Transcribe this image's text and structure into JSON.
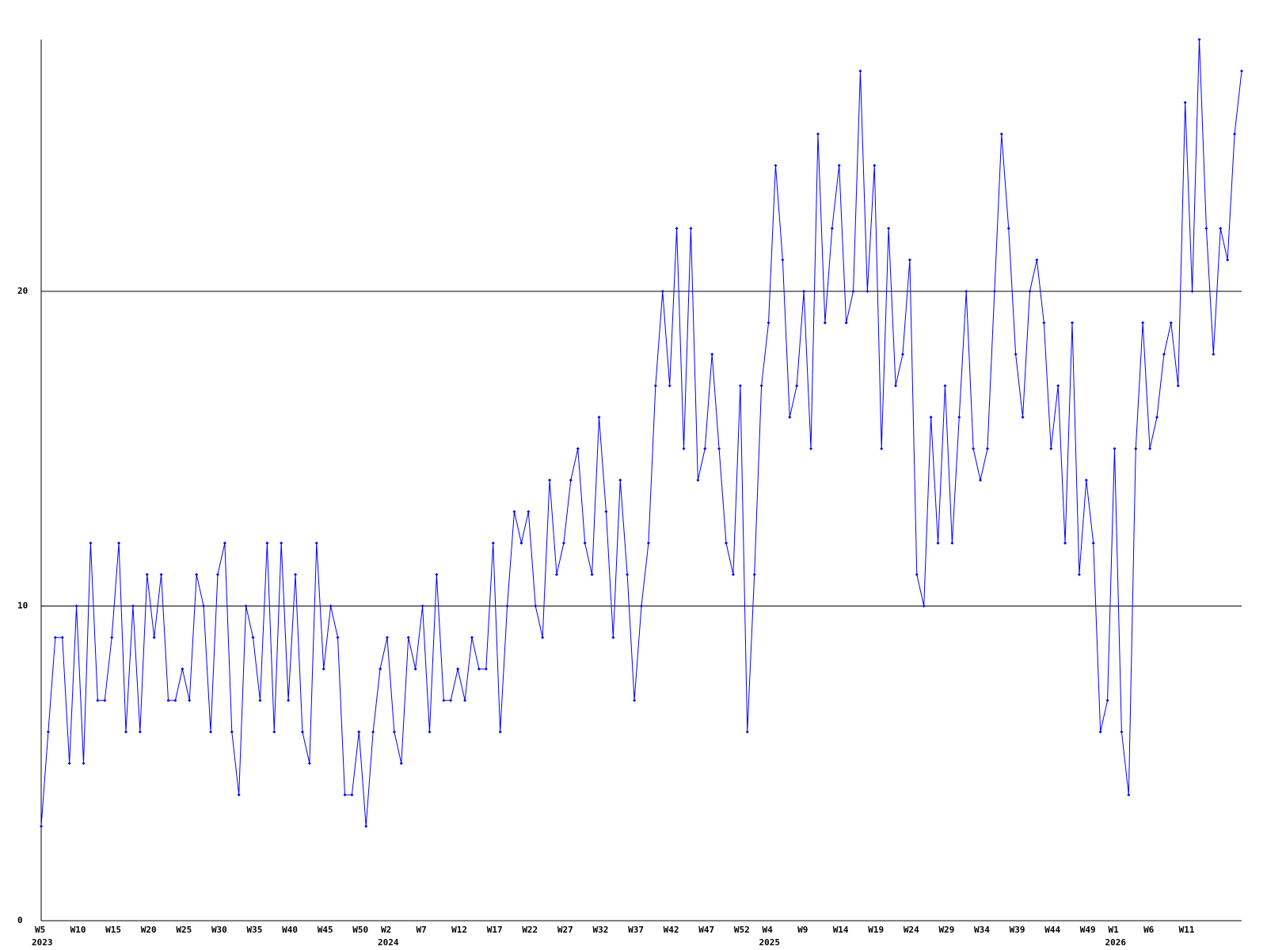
{
  "chart_data": {
    "type": "line",
    "categories": [
      "W5",
      null,
      null,
      null,
      null,
      "W10",
      null,
      null,
      null,
      null,
      "W15",
      null,
      null,
      null,
      null,
      "W20",
      null,
      null,
      null,
      null,
      "W25",
      null,
      null,
      null,
      null,
      "W30",
      null,
      null,
      null,
      null,
      "W35",
      null,
      null,
      null,
      null,
      "W40",
      null,
      null,
      null,
      null,
      "W45",
      null,
      null,
      null,
      null,
      "W50",
      null,
      null,
      null,
      "W2",
      null,
      null,
      null,
      null,
      "W7",
      null,
      null,
      null,
      null,
      "W12",
      null,
      null,
      null,
      null,
      "W17",
      null,
      null,
      null,
      null,
      "W22",
      null,
      null,
      null,
      null,
      "W27",
      null,
      null,
      null,
      null,
      "W32",
      null,
      null,
      null,
      null,
      "W37",
      null,
      null,
      null,
      null,
      "W42",
      null,
      null,
      null,
      null,
      "W47",
      null,
      null,
      null,
      null,
      "W52",
      null,
      null,
      null,
      "W4",
      null,
      null,
      null,
      null,
      "W9",
      null,
      null,
      null,
      null,
      "W14",
      null,
      null,
      null,
      null,
      "W19",
      null,
      null,
      null,
      null,
      "W24",
      null,
      null,
      null,
      null,
      "W29",
      null,
      null,
      null,
      null,
      "W34",
      null,
      null,
      null,
      null,
      "W39",
      null,
      null,
      null,
      null,
      "W44",
      null,
      null,
      null,
      null,
      "W49",
      null,
      null,
      null,
      "W1",
      null,
      null,
      null,
      null,
      "W6",
      null,
      null,
      null,
      null,
      "W11",
      null,
      null,
      null,
      null,
      null,
      null,
      null,
      null
    ],
    "category_years": [
      "2023",
      null,
      null,
      null,
      null,
      null,
      null,
      null,
      null,
      null,
      null,
      null,
      null,
      null,
      null,
      null,
      null,
      null,
      null,
      null,
      null,
      null,
      null,
      null,
      null,
      null,
      null,
      null,
      null,
      null,
      null,
      null,
      null,
      null,
      null,
      null,
      null,
      null,
      null,
      null,
      null,
      null,
      null,
      null,
      null,
      null,
      null,
      null,
      null,
      "2024",
      null,
      null,
      null,
      null,
      null,
      null,
      null,
      null,
      null,
      null,
      null,
      null,
      null,
      null,
      null,
      null,
      null,
      null,
      null,
      null,
      null,
      null,
      null,
      null,
      null,
      null,
      null,
      null,
      null,
      null,
      null,
      null,
      null,
      null,
      null,
      null,
      null,
      null,
      null,
      null,
      null,
      null,
      null,
      null,
      null,
      null,
      null,
      null,
      null,
      null,
      null,
      null,
      null,
      "2025",
      null,
      null,
      null,
      null,
      null,
      null,
      null,
      null,
      null,
      null,
      null,
      null,
      null,
      null,
      null,
      null,
      null,
      null,
      null,
      null,
      null,
      null,
      null,
      null,
      null,
      null,
      null,
      null,
      null,
      null,
      null,
      null,
      null,
      null,
      null,
      null,
      null,
      null,
      null,
      null,
      null,
      null,
      null,
      null,
      null,
      null,
      null,
      null,
      "2026",
      null,
      null,
      null,
      null,
      null,
      null,
      null,
      null,
      null,
      null,
      null,
      null,
      null,
      null,
      null,
      null,
      null,
      null
    ],
    "values": [
      3,
      6,
      9,
      9,
      5,
      10,
      5,
      12,
      7,
      7,
      9,
      12,
      6,
      10,
      6,
      11,
      9,
      11,
      7,
      7,
      8,
      7,
      11,
      10,
      6,
      11,
      12,
      6,
      4,
      10,
      9,
      7,
      12,
      6,
      12,
      7,
      11,
      6,
      5,
      12,
      8,
      10,
      9,
      4,
      4,
      6,
      3,
      6,
      8,
      9,
      6,
      5,
      9,
      8,
      10,
      6,
      11,
      7,
      7,
      8,
      7,
      9,
      8,
      8,
      12,
      6,
      10,
      13,
      12,
      13,
      10,
      9,
      14,
      11,
      12,
      14,
      15,
      12,
      11,
      16,
      13,
      9,
      14,
      11,
      7,
      10,
      12,
      17,
      20,
      17,
      22,
      15,
      22,
      14,
      15,
      18,
      15,
      12,
      11,
      17,
      6,
      11,
      17,
      19,
      24,
      21,
      16,
      17,
      20,
      15,
      25,
      19,
      22,
      24,
      19,
      20,
      27,
      20,
      24,
      15,
      22,
      17,
      18,
      21,
      11,
      10,
      16,
      12,
      17,
      12,
      16,
      20,
      15,
      14,
      15,
      20,
      25,
      22,
      18,
      16,
      20,
      21,
      19,
      15,
      17,
      12,
      19,
      11,
      14,
      12,
      6,
      7,
      15,
      6,
      4,
      15,
      19,
      15,
      16,
      18,
      19,
      17,
      26,
      20,
      28,
      22,
      18,
      22,
      21,
      25,
      27
    ],
    "color": "#0000ff",
    "ylim": [
      0,
      28
    ],
    "yticks": [
      0,
      10,
      20
    ],
    "grid": true
  }
}
